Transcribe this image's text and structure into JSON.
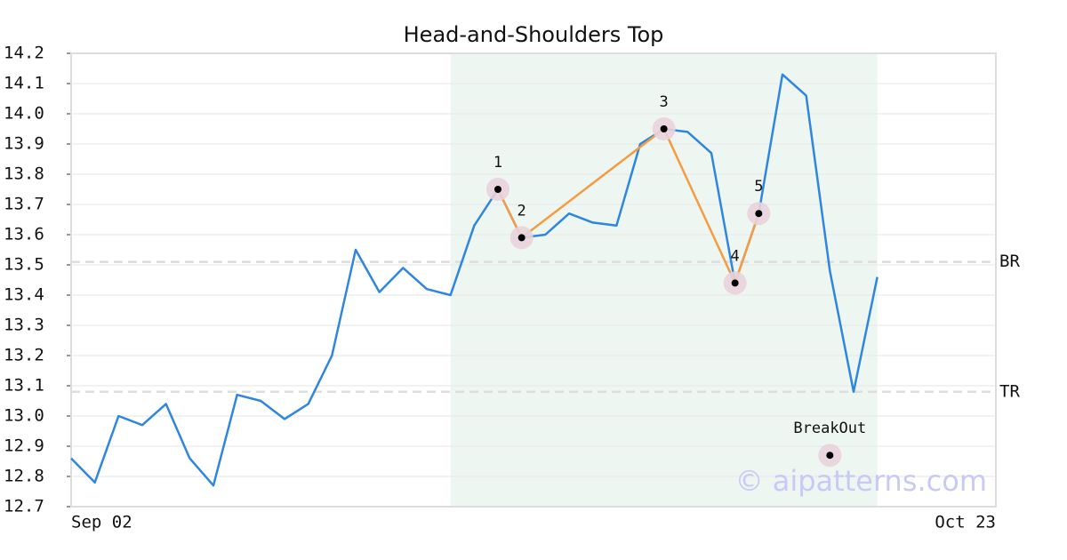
{
  "chart_data": {
    "type": "line",
    "title": "Head-and-Shoulders Top",
    "categories": [
      "Sep 02",
      null,
      null,
      null,
      null,
      null,
      null,
      null,
      null,
      null,
      null,
      null,
      null,
      null,
      null,
      null,
      null,
      null,
      null,
      null,
      null,
      null,
      null,
      null,
      null,
      null,
      null,
      null,
      null,
      null,
      null,
      null,
      null,
      null,
      null,
      null,
      null,
      null,
      null,
      "Oct 23"
    ],
    "values": [
      12.86,
      12.78,
      13.0,
      12.97,
      13.04,
      12.86,
      12.77,
      13.07,
      13.05,
      12.99,
      13.04,
      13.2,
      13.55,
      13.41,
      13.49,
      13.42,
      13.4,
      13.63,
      13.75,
      13.59,
      13.6,
      13.67,
      13.64,
      13.63,
      13.9,
      13.95,
      13.94,
      13.87,
      13.44,
      13.67,
      14.13,
      14.06,
      13.48,
      13.08,
      13.46,
      null,
      null,
      null,
      null,
      null
    ],
    "color": "#2e86de",
    "ylim": [
      12.7,
      14.2
    ],
    "yticks": [
      12.7,
      12.8,
      12.9,
      {
        "value": 13.0,
        "label": "13.0"
      },
      13.1,
      13.2,
      13.3,
      13.4,
      13.5,
      13.6,
      13.7,
      13.8,
      13.9,
      {
        "value": 14.0,
        "label": "14.0"
      },
      14.1,
      14.2
    ],
    "grid": true,
    "shade": {
      "from": 16,
      "to": 34,
      "color": "#eef6f2"
    },
    "pattern": {
      "color": "#f59b42",
      "points": [
        {
          "index": 18,
          "value": 13.75,
          "label": "1"
        },
        {
          "index": 19,
          "value": 13.59,
          "label": "2"
        },
        {
          "index": 25,
          "value": 13.95,
          "label": "3"
        },
        {
          "index": 28,
          "value": 13.44,
          "label": "4"
        },
        {
          "index": 29,
          "value": 13.67,
          "label": "5"
        }
      ]
    },
    "breakout": {
      "index": 32,
      "value": 12.87,
      "label": "BreakOut"
    },
    "levels": [
      {
        "label": "BR",
        "value": 13.51
      },
      {
        "label": "TR",
        "value": 13.08
      }
    ],
    "watermark": "© aipatterns.com"
  }
}
